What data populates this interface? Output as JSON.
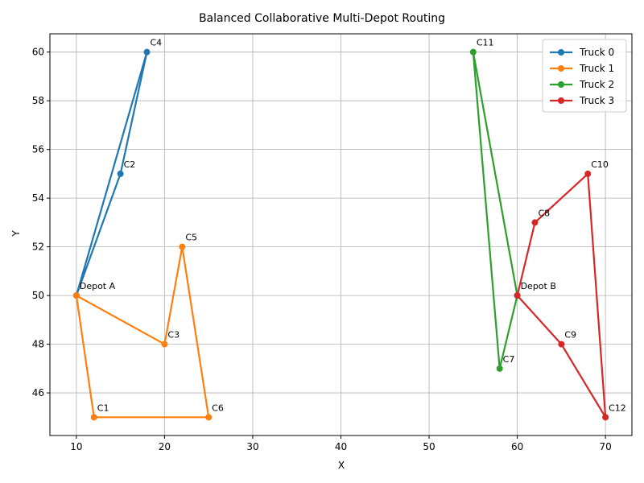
{
  "chart_data": {
    "type": "line",
    "title": "Balanced Collaborative Multi-Depot Routing",
    "xlabel": "X",
    "ylabel": "Y",
    "xlim": [
      7,
      73
    ],
    "ylim": [
      44.25,
      60.75
    ],
    "xticks": [
      10,
      20,
      30,
      40,
      50,
      60,
      70
    ],
    "yticks": [
      46,
      48,
      50,
      52,
      54,
      56,
      58,
      60
    ],
    "grid": true,
    "legend_position": "top-right",
    "series": [
      {
        "name": "Truck 0",
        "color": "#1f77b4",
        "points": [
          [
            10,
            50
          ],
          [
            15,
            55
          ],
          [
            18,
            60
          ],
          [
            10,
            50
          ]
        ]
      },
      {
        "name": "Truck 1",
        "color": "#ff7f0e",
        "points": [
          [
            10,
            50
          ],
          [
            20,
            48
          ],
          [
            22,
            52
          ],
          [
            25,
            45
          ],
          [
            12,
            45
          ],
          [
            10,
            50
          ]
        ]
      },
      {
        "name": "Truck 2",
        "color": "#2ca02c",
        "points": [
          [
            60,
            50
          ],
          [
            58,
            47
          ],
          [
            55,
            60
          ],
          [
            60,
            50
          ]
        ]
      },
      {
        "name": "Truck 3",
        "color": "#d62728",
        "points": [
          [
            60,
            50
          ],
          [
            65,
            48
          ],
          [
            70,
            45
          ],
          [
            68,
            55
          ],
          [
            62,
            53
          ],
          [
            60,
            50
          ]
        ]
      }
    ],
    "annotations": [
      {
        "text": "Depot A",
        "x": 10,
        "y": 50
      },
      {
        "text": "Depot B",
        "x": 60,
        "y": 50
      },
      {
        "text": "C1",
        "x": 12,
        "y": 45
      },
      {
        "text": "C2",
        "x": 15,
        "y": 55
      },
      {
        "text": "C3",
        "x": 20,
        "y": 48
      },
      {
        "text": "C4",
        "x": 18,
        "y": 60
      },
      {
        "text": "C5",
        "x": 22,
        "y": 52
      },
      {
        "text": "C6",
        "x": 25,
        "y": 45
      },
      {
        "text": "C7",
        "x": 58,
        "y": 47
      },
      {
        "text": "C8",
        "x": 62,
        "y": 53
      },
      {
        "text": "C9",
        "x": 65,
        "y": 48
      },
      {
        "text": "C10",
        "x": 68,
        "y": 55
      },
      {
        "text": "C11",
        "x": 55,
        "y": 60
      },
      {
        "text": "C12",
        "x": 70,
        "y": 45
      }
    ]
  }
}
